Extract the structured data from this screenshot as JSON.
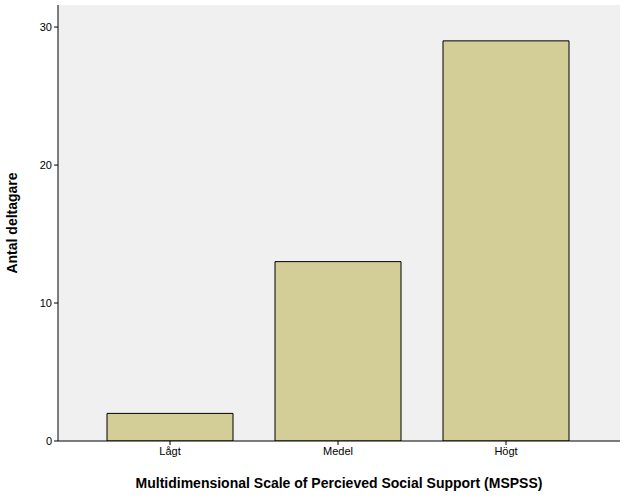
{
  "chart_data": {
    "type": "bar",
    "categories": [
      "Lågt",
      "Medel",
      "Högt"
    ],
    "values": [
      2,
      13,
      29
    ],
    "color": "#d3ce97",
    "x_label": "Multidimensional Scale of Percieved Social Support (MSPSS)",
    "y_label": "Antal deltagare",
    "ylim": [
      0,
      31.6
    ],
    "yticks": [
      0,
      10,
      20,
      30
    ],
    "grid": false
  }
}
